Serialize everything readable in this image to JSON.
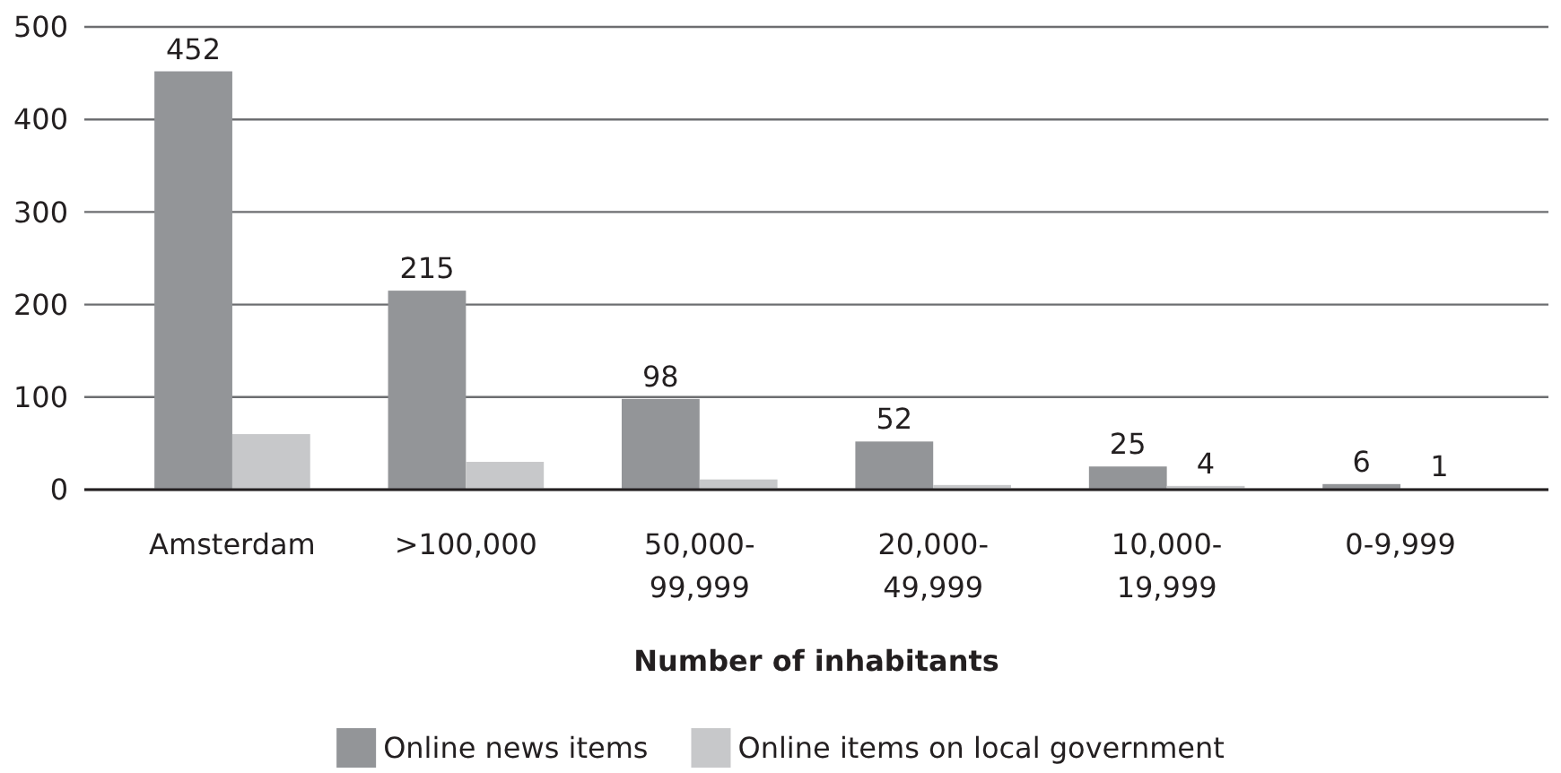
{
  "chart_data": {
    "type": "bar",
    "xlabel": "Number of inhabitants",
    "categories": [
      "Amsterdam",
      ">100,000",
      "50,000-99,999",
      "20,000-49,999",
      "10,000-19,999",
      "0-9,999"
    ],
    "series": [
      {
        "name": "Online news items",
        "color": "#939598",
        "values": [
          452,
          215,
          98,
          52,
          25,
          6
        ],
        "value_labels": [
          "452",
          "215",
          "98",
          "52",
          "25",
          "6"
        ]
      },
      {
        "name": "Online items on local government",
        "color": "#c7c8ca",
        "values": [
          60,
          30,
          11,
          5,
          4,
          1
        ],
        "value_labels": [
          null,
          null,
          null,
          null,
          "4",
          "1"
        ]
      }
    ],
    "ylim": [
      0,
      500
    ],
    "yticks": [
      0,
      100,
      200,
      300,
      400,
      500
    ],
    "grid": "y",
    "legend": "bottom"
  }
}
